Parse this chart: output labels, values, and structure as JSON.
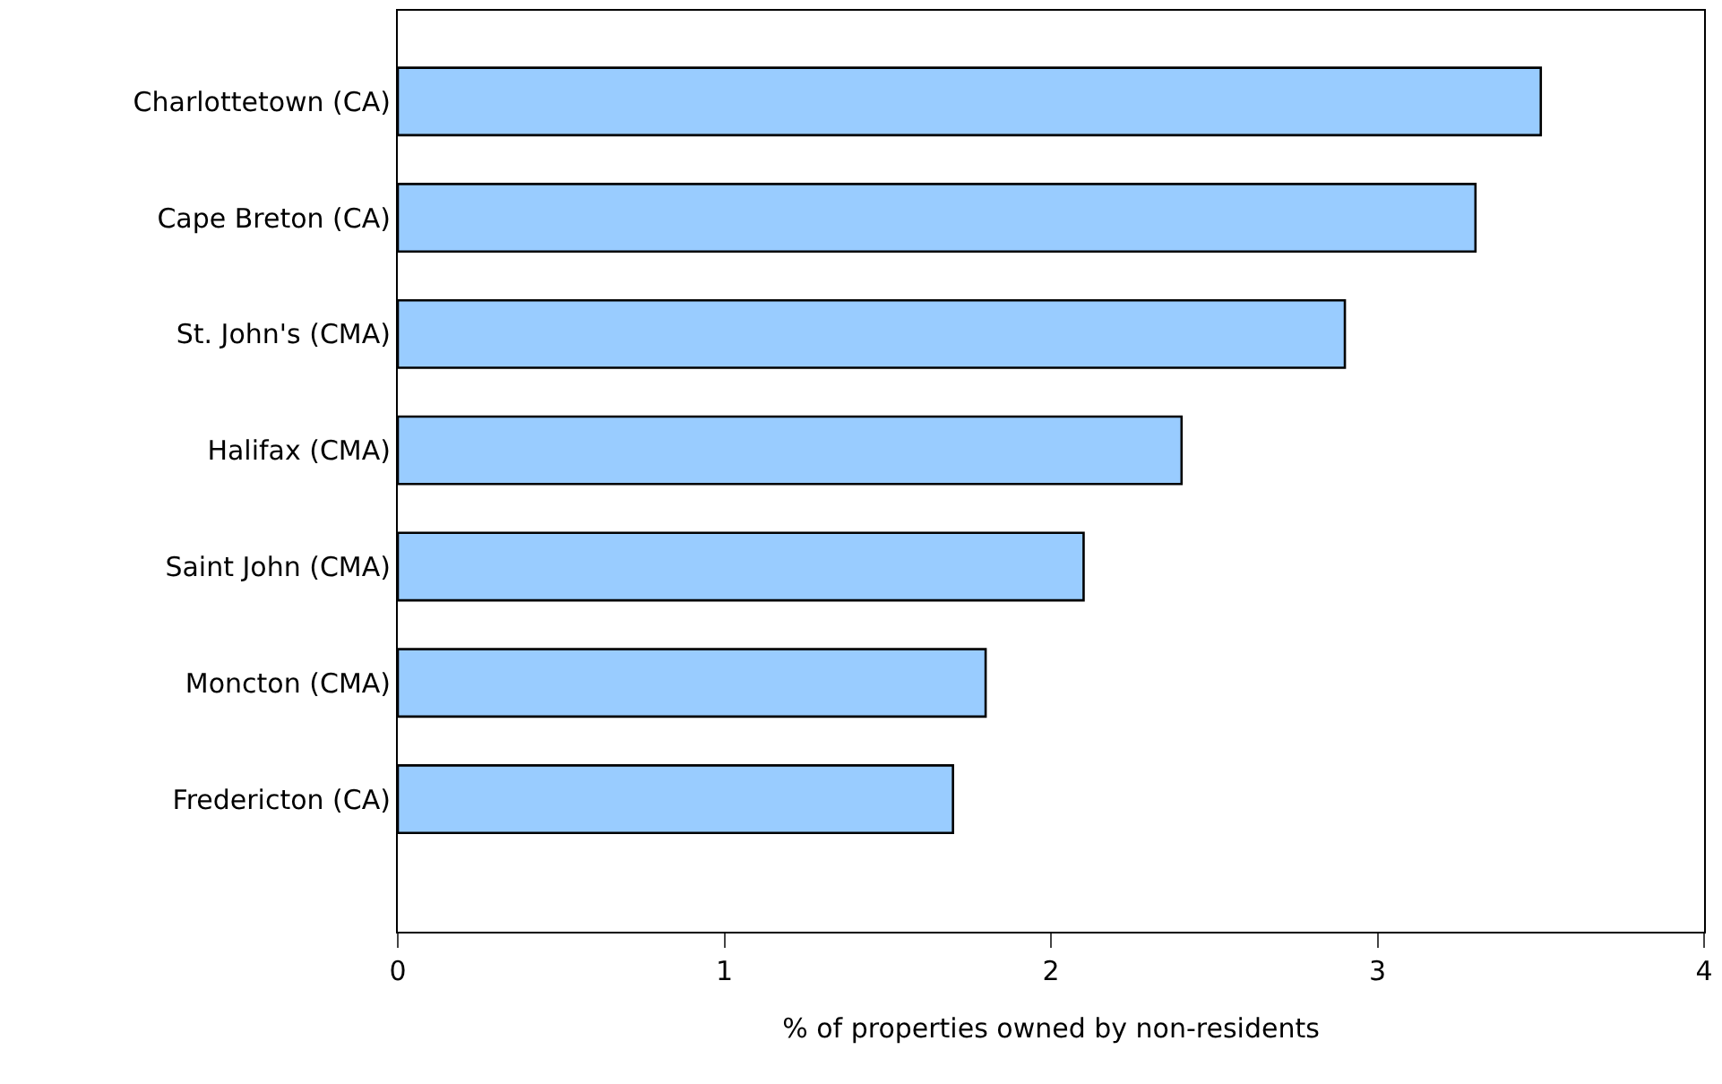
{
  "chart_data": {
    "type": "bar",
    "orientation": "horizontal",
    "xlabel": "% of properties owned by non-residents",
    "categories": [
      "Charlottetown (CA)",
      "Cape Breton (CA)",
      "St. John's (CMA)",
      "Halifax (CMA)",
      "Saint John (CMA)",
      "Moncton (CMA)",
      "Fredericton (CA)"
    ],
    "values": [
      3.5,
      3.3,
      2.9,
      2.4,
      2.1,
      1.8,
      1.7
    ],
    "color": "#99ccff",
    "xlim": [
      0,
      4
    ],
    "xticks": [
      0,
      1,
      2,
      3,
      4
    ],
    "grid": false,
    "legend": false
  }
}
